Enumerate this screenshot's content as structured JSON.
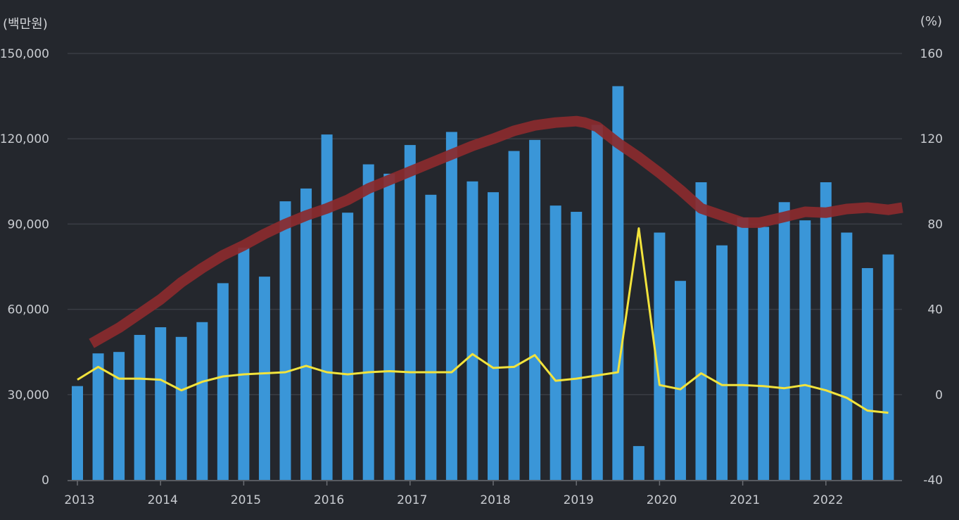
{
  "chart_data": {
    "type": "bar",
    "left_axis": {
      "unit": "(백만원)",
      "ticks": [
        "150,000",
        "120,000",
        "90,000",
        "60,000",
        "30,000",
        "0"
      ],
      "ylim": [
        0,
        150000
      ]
    },
    "right_axis": {
      "unit": "(%)",
      "ticks": [
        "160",
        "120",
        "80",
        "40",
        "0",
        "-40"
      ],
      "ylim": [
        -40,
        160
      ]
    },
    "x_ticks": [
      "2013",
      "2014",
      "2015",
      "2016",
      "2017",
      "2018",
      "2019",
      "2020",
      "2021",
      "2022"
    ],
    "grid": true,
    "colors": {
      "bar": "#3a96d8",
      "trend": "#8b2a2e",
      "growth": "#f2e33c",
      "background": "#24272d",
      "grid": "#3a3d44"
    },
    "series": [
      {
        "type": "bar",
        "axis": "left",
        "x": [
          2013.0,
          2013.25,
          2013.5,
          2013.75,
          2014.0,
          2014.25,
          2014.5,
          2014.75,
          2015.0,
          2015.25,
          2015.5,
          2015.75,
          2016.0,
          2016.25,
          2016.5,
          2016.75,
          2017.0,
          2017.25,
          2017.5,
          2017.75,
          2018.0,
          2018.25,
          2018.5,
          2018.75,
          2019.0,
          2019.25,
          2019.5,
          2019.75,
          2020.0,
          2020.25,
          2020.5,
          2020.75,
          2021.0,
          2021.25,
          2021.5,
          2021.75,
          2022.0,
          2022.25,
          2022.5,
          2022.75
        ],
        "values": [
          33000,
          44500,
          45000,
          51000,
          53700,
          50300,
          55500,
          69200,
          81700,
          71500,
          98000,
          102500,
          121500,
          94000,
          111000,
          107700,
          117800,
          100300,
          122400,
          105000,
          101200,
          115700,
          119600,
          96500,
          94300,
          124900,
          138500,
          11900,
          87000,
          70000,
          104700,
          82500,
          92300,
          89000,
          97700,
          91300,
          104700,
          87000,
          74500,
          79300
        ]
      },
      {
        "type": "line",
        "axis": "right",
        "x": [
          2013.0,
          2013.25,
          2013.5,
          2013.75,
          2014.0,
          2014.25,
          2014.5,
          2014.75,
          2015.0,
          2015.25,
          2015.5,
          2015.75,
          2016.0,
          2016.25,
          2016.5,
          2016.75,
          2017.0,
          2017.25,
          2017.5,
          2017.75,
          2018.0,
          2018.25,
          2018.5,
          2018.75,
          2019.0,
          2019.25,
          2019.5,
          2019.75,
          2020.0,
          2020.25,
          2020.5,
          2020.75,
          2021.0,
          2021.25,
          2021.5,
          2021.75,
          2022.0,
          2022.25,
          2022.5,
          2022.75
        ],
        "values": [
          7,
          13,
          7.5,
          7.5,
          7,
          2,
          6,
          8.5,
          9.5,
          10,
          10.5,
          13.5,
          10.5,
          9.5,
          10.5,
          11,
          10.5,
          10.5,
          10.5,
          19,
          12.5,
          13,
          18.5,
          6.5,
          7.5,
          9,
          10.5,
          78,
          4.5,
          2.5,
          10,
          4.5,
          4.5,
          4,
          3,
          4.5,
          2,
          -1.5,
          -7.5,
          -8.5
        ]
      },
      {
        "type": "line",
        "axis": "left",
        "x": [
          2013.17,
          2013.5,
          2013.75,
          2014.0,
          2014.25,
          2014.5,
          2014.75,
          2015.0,
          2015.25,
          2015.5,
          2015.75,
          2016.0,
          2016.25,
          2016.5,
          2016.75,
          2017.0,
          2017.25,
          2017.5,
          2017.75,
          2018.0,
          2018.25,
          2018.5,
          2018.75,
          2019.0,
          2019.1,
          2019.25,
          2019.5,
          2019.75,
          2020.0,
          2020.25,
          2020.5,
          2020.75,
          2021.0,
          2021.2,
          2021.5,
          2021.75,
          2022.0,
          2022.25,
          2022.5,
          2022.75,
          2022.92
        ],
        "values": [
          48000,
          53500,
          58500,
          63500,
          69500,
          74500,
          79000,
          82500,
          86500,
          90000,
          93000,
          95500,
          98500,
          102500,
          105500,
          108500,
          111500,
          114500,
          117500,
          120000,
          122800,
          124700,
          125700,
          126200,
          125700,
          124200,
          118500,
          113500,
          108000,
          102000,
          95500,
          93000,
          90500,
          90500,
          92500,
          94300,
          94000,
          95300,
          95800,
          95000,
          95800
        ]
      }
    ]
  }
}
